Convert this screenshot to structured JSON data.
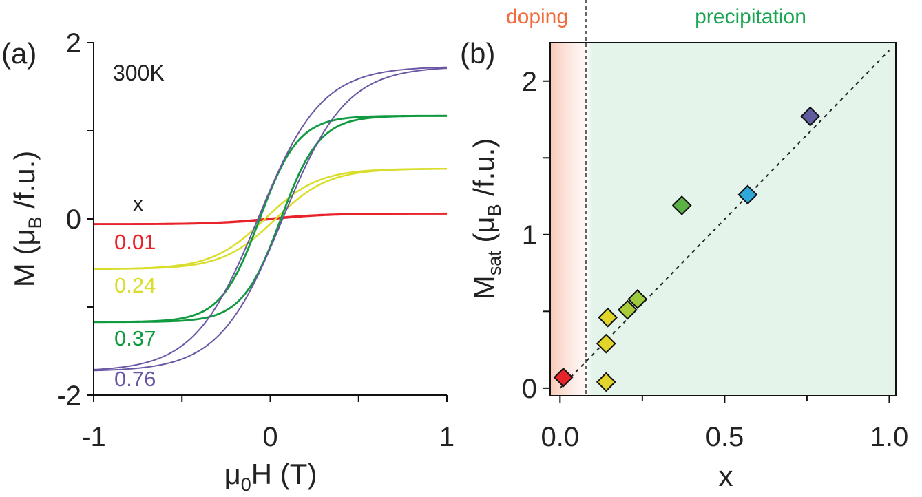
{
  "chart_data": [
    {
      "panel": "(a)",
      "type": "line",
      "annotation": "300K",
      "xlabel": {
        "main": "μ",
        "sub": "0",
        "rest": "H (T)"
      },
      "ylabel": {
        "main": "M (μ",
        "sub": "B",
        "rest": " /f.u.)"
      },
      "xlim": [
        -1,
        1
      ],
      "ylim": [
        -2,
        2
      ],
      "xticks": [
        -1,
        -0.5,
        0,
        0.5,
        1
      ],
      "xtick_labels": [
        "-1",
        "0",
        "1"
      ],
      "xtick_label_values": [
        -1,
        0,
        1
      ],
      "yticks": [
        -2,
        -1,
        0,
        1,
        2
      ],
      "ytick_labels": [
        "-2",
        "0",
        "2"
      ],
      "ytick_label_values": [
        -2,
        0,
        2
      ],
      "legend_header": "x",
      "series": [
        {
          "name": "0.01",
          "color": "#e8232a",
          "ms": 0.06,
          "hc": 0.02,
          "w": 0.32,
          "stroke": 2.8
        },
        {
          "name": "0.24",
          "color": "#d9de2c",
          "ms": 0.57,
          "hc": 0.03,
          "w": 0.3,
          "stroke": 2.5
        },
        {
          "name": "0.37",
          "color": "#119a3f",
          "ms": 1.17,
          "hc": 0.06,
          "w": 0.22,
          "stroke": 2.8
        },
        {
          "name": "0.76",
          "color": "#6a56a4",
          "ms": 1.73,
          "hc": 0.07,
          "w": 0.36,
          "stroke": 2.0
        }
      ]
    },
    {
      "panel": "(b)",
      "type": "scatter",
      "xlabel": "x",
      "ylabel": {
        "main": "M",
        "sub": "sat",
        "rest": " (μ",
        "sub2": "B",
        "rest2": " /f.u.)"
      },
      "xlim": [
        -0.03,
        1.02
      ],
      "ylim": [
        -0.05,
        2.25
      ],
      "xticks": [
        0,
        0.5,
        1.0
      ],
      "xtick_labels": [
        "0.0",
        "0.5",
        "1.0"
      ],
      "minor_xticks": [
        0.25,
        0.75
      ],
      "yticks": [
        0,
        0.5,
        1,
        1.5,
        2
      ],
      "ytick_labels": [
        "0",
        "1",
        "2"
      ],
      "ytick_label_values": [
        0,
        1,
        2
      ],
      "regions": [
        {
          "label": "doping",
          "color": "#f26b3a",
          "x_from": -0.03,
          "x_to": 0.08
        },
        {
          "label": "precipitation",
          "color": "#1aa651",
          "x_from": 0.08,
          "x_to": 1.02
        }
      ],
      "boundary_x": 0.08,
      "fit_line": {
        "x": [
          0.0,
          1.0
        ],
        "y": [
          0.0,
          2.2
        ]
      },
      "points": [
        {
          "x": 0.01,
          "y": 0.07,
          "color": "#e8232a"
        },
        {
          "x": 0.14,
          "y": 0.04,
          "color": "#e2d52a"
        },
        {
          "x": 0.14,
          "y": 0.29,
          "color": "#e2d52a"
        },
        {
          "x": 0.145,
          "y": 0.46,
          "color": "#e2d52a"
        },
        {
          "x": 0.205,
          "y": 0.51,
          "color": "#aacb3a"
        },
        {
          "x": 0.235,
          "y": 0.58,
          "color": "#9ccb3e"
        },
        {
          "x": 0.37,
          "y": 1.19,
          "color": "#5bb046"
        },
        {
          "x": 0.57,
          "y": 1.26,
          "color": "#2fa7d8"
        },
        {
          "x": 0.76,
          "y": 1.77,
          "color": "#5e5b9e"
        }
      ]
    }
  ]
}
